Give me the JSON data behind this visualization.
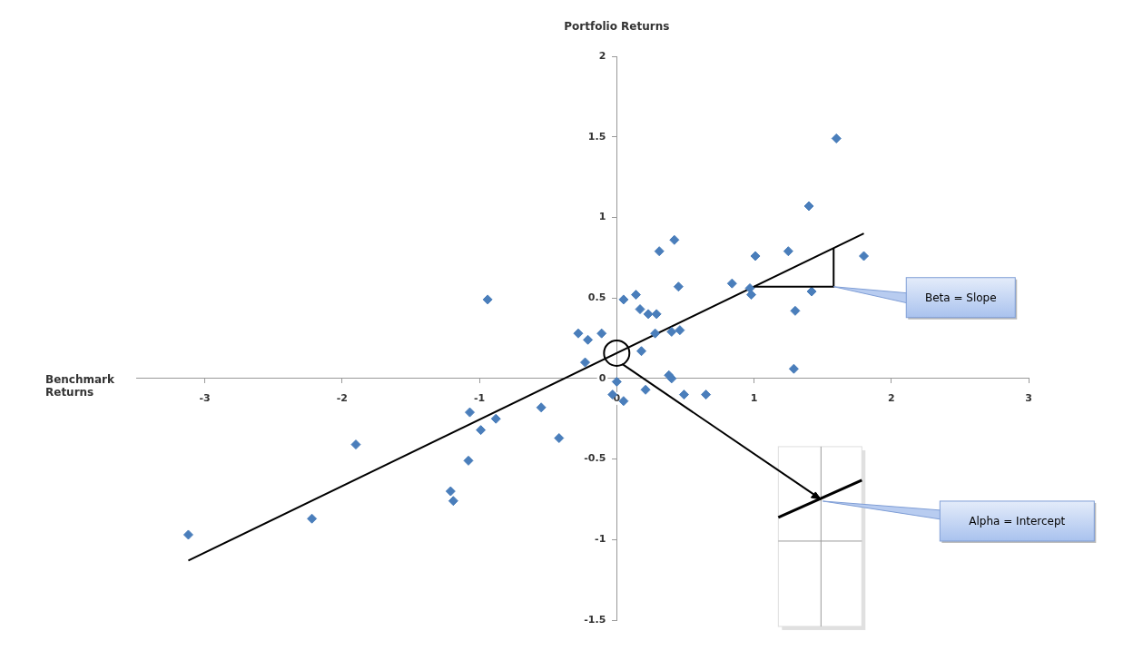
{
  "chart_data": {
    "type": "scatter",
    "xlabel": "Benchmark Returns",
    "ylabel": "Portfolio Returns",
    "xlim": [
      -3.5,
      3
    ],
    "xticks": [
      -3,
      -2,
      -1,
      0,
      1,
      2,
      3
    ],
    "ylim": [
      -1.5,
      2
    ],
    "yticks": [
      -1.5,
      -1,
      -0.5,
      0,
      0.5,
      1,
      1.5,
      2
    ],
    "grid": false,
    "marker": "diamond",
    "series": [
      {
        "color": "#4a7ebb",
        "x": [
          -3.12,
          -2.22,
          -1.9,
          -0.94,
          -1.07,
          -0.88,
          -0.99,
          -1.08,
          -1.21,
          -1.19,
          0.42,
          0.31,
          0.45,
          0.05,
          0.14,
          0.17,
          0.23,
          0.29,
          -0.28,
          -0.11,
          -0.21,
          0.28,
          0.4,
          0.46,
          0.18,
          -0.23,
          0,
          0.38,
          0.4,
          -0.03,
          0.05,
          0.21,
          0.49,
          0.65,
          -0.55,
          -0.42,
          1.6,
          1.4,
          1.01,
          1.25,
          1.8,
          0.84,
          0.97,
          0.98,
          1.42,
          1.3,
          1.29
        ],
        "values": [
          -0.97,
          -0.87,
          -0.41,
          0.49,
          -0.21,
          -0.25,
          -0.32,
          -0.51,
          -0.7,
          -0.76,
          0.86,
          0.79,
          0.57,
          0.49,
          0.52,
          0.43,
          0.4,
          0.4,
          0.28,
          0.28,
          0.24,
          0.28,
          0.29,
          0.3,
          0.17,
          0.1,
          -0.02,
          0.02,
          0,
          -0.1,
          -0.14,
          -0.07,
          -0.1,
          -0.1,
          -0.18,
          -0.37,
          1.49,
          1.07,
          0.76,
          0.79,
          0.76,
          0.59,
          0.56,
          0.52,
          0.54,
          0.42,
          0.06
        ]
      },
      {
        "type": "line",
        "color": "#000000",
        "line_style": "solid",
        "marker": "none",
        "x": [
          -3.12,
          1.8
        ],
        "values": [
          -1.13,
          0.9
        ]
      }
    ],
    "annotations": [
      "Beta = Slope",
      "Alpha = Intercept"
    ]
  }
}
